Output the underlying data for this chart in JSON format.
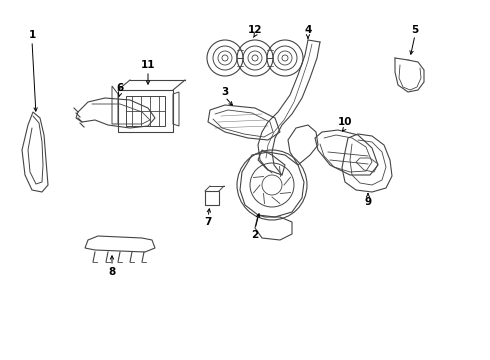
{
  "background_color": "#ffffff",
  "line_color": "#444444",
  "label_color": "#000000",
  "figsize": [
    4.9,
    3.6
  ],
  "dpi": 100
}
